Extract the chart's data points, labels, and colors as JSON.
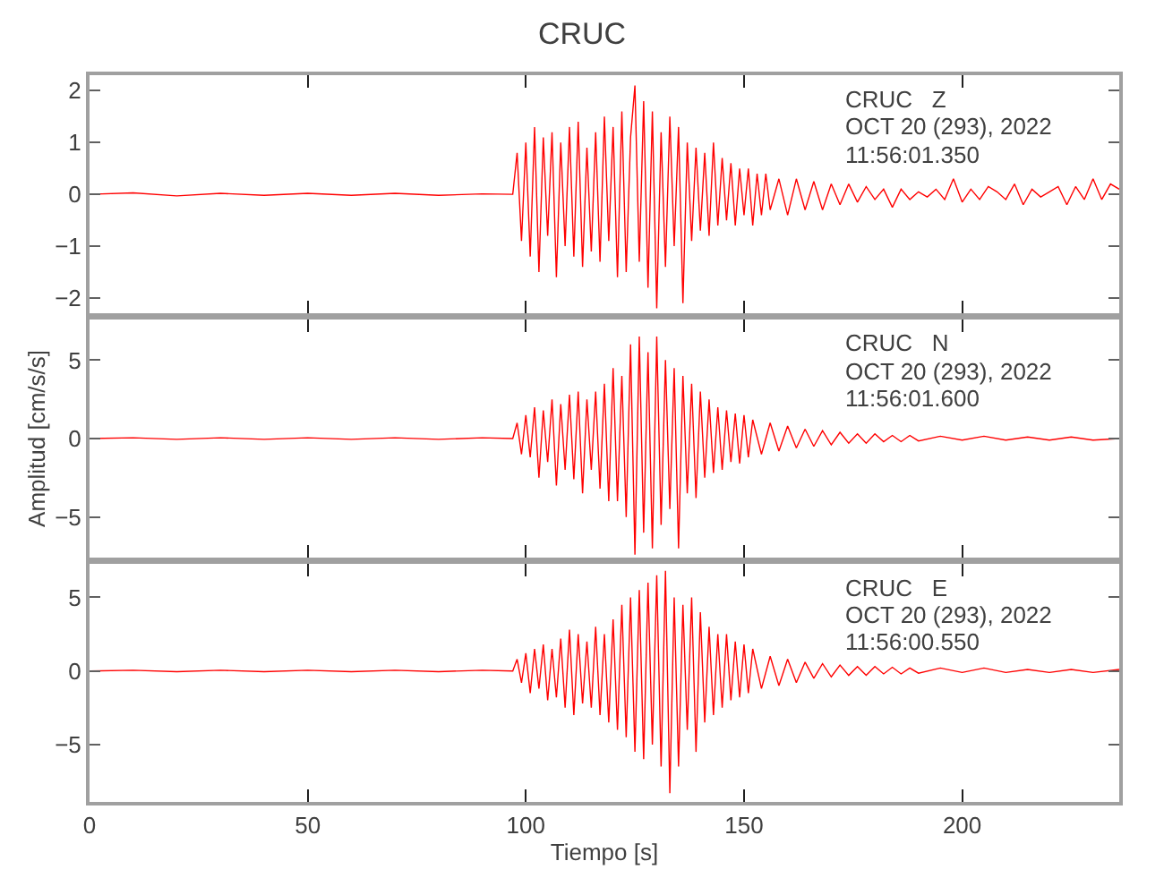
{
  "chart_data": [
    {
      "type": "line",
      "title": "CRUC",
      "tick_labels": "y",
      "xlim": [
        0,
        236
      ],
      "xticks": [
        0,
        50,
        100,
        150,
        200
      ],
      "ylim": [
        -2.3,
        2.3
      ],
      "yticks": [
        -2,
        -1,
        0,
        1,
        2
      ],
      "annotations": [
        "CRUC   Z",
        "OCT 20 (293), 2022",
        "11:56:01.350"
      ],
      "x": [
        0,
        10,
        20,
        30,
        40,
        50,
        60,
        70,
        80,
        90,
        97,
        98,
        99,
        100,
        101,
        102,
        103,
        104,
        105,
        106,
        107,
        108,
        109,
        110,
        111,
        112,
        113,
        114,
        115,
        116,
        117,
        118,
        119,
        120,
        121,
        122,
        123,
        124,
        125,
        126,
        127,
        128,
        129,
        130,
        131,
        132,
        133,
        134,
        135,
        136,
        137,
        138,
        139,
        140,
        141,
        142,
        143,
        144,
        145,
        146,
        147,
        148,
        149,
        150,
        151,
        152,
        153,
        154,
        155,
        156,
        158,
        160,
        162,
        164,
        166,
        168,
        170,
        172,
        174,
        176,
        178,
        180,
        182,
        184,
        186,
        188,
        190,
        192,
        194,
        196,
        198,
        200,
        202,
        204,
        206,
        208,
        210,
        212,
        214,
        216,
        218,
        220,
        222,
        224,
        226,
        228,
        230,
        232,
        234,
        236
      ],
      "series": [
        {
          "color": "#ff0000",
          "values": [
            0,
            0.03,
            -0.03,
            0.02,
            -0.02,
            0.02,
            -0.02,
            0.02,
            -0.02,
            0.01,
            0,
            0.8,
            -0.9,
            1.0,
            -1.2,
            1.3,
            -1.5,
            1.1,
            -0.8,
            1.2,
            -1.6,
            1.0,
            -1.0,
            1.3,
            -1.2,
            1.4,
            -1.4,
            0.9,
            -1.1,
            1.2,
            -1.3,
            1.5,
            -0.9,
            1.3,
            -1.6,
            1.6,
            -1.5,
            1.1,
            2.1,
            -1.3,
            1.8,
            -1.8,
            1.6,
            -2.2,
            1.2,
            -1.4,
            1.5,
            -1.0,
            1.3,
            -2.1,
            1.0,
            -0.9,
            0.9,
            -0.7,
            0.8,
            -0.8,
            1.0,
            -0.6,
            0.7,
            -0.5,
            0.6,
            -0.6,
            0.5,
            -0.4,
            0.5,
            -0.6,
            0.4,
            -0.4,
            0.4,
            -0.3,
            0.3,
            -0.4,
            0.3,
            -0.3,
            0.25,
            -0.3,
            0.2,
            -0.2,
            0.2,
            -0.15,
            0.15,
            -0.1,
            0.1,
            -0.25,
            0.1,
            -0.1,
            0.05,
            -0.05,
            0.1,
            -0.1,
            0.3,
            -0.15,
            0.1,
            -0.1,
            0.15,
            0.05,
            -0.1,
            0.2,
            -0.2,
            0.1,
            -0.05,
            0.05,
            0.15,
            -0.2,
            0.15,
            -0.1,
            0.3,
            -0.1,
            0.2,
            0.1
          ]
        }
      ]
    },
    {
      "type": "line",
      "ylabel": "Amplitud [cm/s/s]",
      "tick_labels": "y",
      "xlim": [
        0,
        236
      ],
      "xticks": [
        0,
        50,
        100,
        150,
        200
      ],
      "ylim": [
        -7.6,
        7.6
      ],
      "yticks": [
        -5,
        0,
        5
      ],
      "annotations": [
        "CRUC   N",
        "OCT 20 (293), 2022",
        "11:56:01.600"
      ],
      "x": [
        0,
        10,
        20,
        30,
        40,
        50,
        60,
        70,
        80,
        90,
        97,
        98,
        99,
        100,
        101,
        102,
        103,
        104,
        105,
        106,
        107,
        108,
        109,
        110,
        111,
        112,
        113,
        114,
        115,
        116,
        117,
        118,
        119,
        120,
        121,
        122,
        123,
        124,
        125,
        126,
        127,
        128,
        129,
        130,
        131,
        132,
        133,
        134,
        135,
        136,
        137,
        138,
        139,
        140,
        141,
        142,
        143,
        144,
        145,
        146,
        147,
        148,
        149,
        150,
        151,
        152,
        154,
        156,
        158,
        160,
        162,
        164,
        166,
        168,
        170,
        172,
        174,
        176,
        178,
        180,
        182,
        184,
        186,
        188,
        190,
        195,
        200,
        205,
        210,
        215,
        220,
        225,
        230,
        236
      ],
      "series": [
        {
          "color": "#ff0000",
          "values": [
            0,
            0.05,
            -0.05,
            0.05,
            -0.05,
            0.05,
            -0.05,
            0.05,
            -0.05,
            0.05,
            0,
            1.0,
            -1.0,
            1.5,
            -1.2,
            2.0,
            -2.5,
            1.8,
            -1.5,
            2.5,
            -3.0,
            2.2,
            -2.0,
            2.8,
            -2.6,
            3.0,
            -3.5,
            2.5,
            -2.0,
            3.0,
            -3.2,
            3.5,
            -4.0,
            4.5,
            -4.0,
            4.0,
            -5.0,
            6.0,
            -7.4,
            6.5,
            -6.0,
            5.5,
            -7.0,
            6.5,
            -5.5,
            5.0,
            -4.5,
            4.5,
            -7.0,
            4.0,
            -3.5,
            3.5,
            -3.8,
            3.0,
            -2.5,
            2.5,
            -2.2,
            2.0,
            -2.0,
            1.8,
            -1.5,
            1.6,
            -1.6,
            1.5,
            -1.2,
            1.2,
            -1.0,
            1.0,
            -0.8,
            0.8,
            -0.6,
            0.6,
            -0.5,
            0.5,
            -0.4,
            0.4,
            -0.3,
            0.3,
            -0.3,
            0.3,
            -0.2,
            0.2,
            -0.2,
            0.2,
            -0.15,
            0.15,
            -0.1,
            0.15,
            -0.1,
            0.1,
            -0.1,
            0.1,
            -0.1,
            0
          ]
        }
      ]
    },
    {
      "type": "line",
      "xlabel": "Tiempo [s]",
      "xlim": [
        0,
        236
      ],
      "xticks": [
        0,
        50,
        100,
        150,
        200
      ],
      "ylim": [
        -8.9,
        7.3
      ],
      "yticks": [
        -5,
        0,
        5
      ],
      "annotations": [
        "CRUC   E",
        "OCT 20 (293), 2022",
        "11:56:00.550"
      ],
      "x": [
        0,
        10,
        20,
        30,
        40,
        50,
        60,
        70,
        80,
        90,
        97,
        98,
        99,
        100,
        101,
        102,
        103,
        104,
        105,
        106,
        107,
        108,
        109,
        110,
        111,
        112,
        113,
        114,
        115,
        116,
        117,
        118,
        119,
        120,
        121,
        122,
        123,
        124,
        125,
        126,
        127,
        128,
        129,
        130,
        131,
        132,
        133,
        134,
        135,
        136,
        137,
        138,
        139,
        140,
        141,
        142,
        143,
        144,
        145,
        146,
        147,
        148,
        149,
        150,
        151,
        152,
        154,
        156,
        158,
        160,
        162,
        164,
        166,
        168,
        170,
        172,
        174,
        176,
        178,
        180,
        182,
        184,
        186,
        188,
        190,
        195,
        200,
        205,
        210,
        215,
        220,
        225,
        230,
        236
      ],
      "series": [
        {
          "color": "#ff0000",
          "values": [
            0,
            0.05,
            -0.05,
            0.05,
            -0.05,
            0.05,
            -0.05,
            0.05,
            -0.05,
            0.05,
            0,
            0.8,
            -0.8,
            1.2,
            -1.5,
            1.5,
            -1.2,
            1.8,
            -2.0,
            1.5,
            -1.8,
            2.2,
            -2.5,
            2.8,
            -3.0,
            2.5,
            -2.2,
            2.0,
            -2.5,
            3.0,
            -3.0,
            2.5,
            -3.5,
            3.5,
            -4.0,
            4.5,
            -4.5,
            5.0,
            -5.5,
            5.5,
            -6.0,
            6.0,
            -5.0,
            6.5,
            -6.5,
            6.8,
            -8.3,
            5.0,
            -6.5,
            4.5,
            -4.0,
            5.0,
            -5.5,
            4.0,
            -3.5,
            3.0,
            -3.0,
            2.5,
            -2.5,
            2.5,
            -2.0,
            2.0,
            -1.8,
            1.8,
            -1.5,
            1.5,
            -1.2,
            1.0,
            -1.0,
            0.8,
            -0.8,
            0.6,
            -0.5,
            0.5,
            -0.4,
            0.4,
            -0.3,
            0.3,
            -0.3,
            0.3,
            -0.2,
            0.25,
            -0.2,
            0.2,
            -0.15,
            0.2,
            -0.1,
            0.2,
            -0.1,
            0.1,
            -0.1,
            0.1,
            -0.1,
            0.1
          ]
        }
      ]
    }
  ]
}
